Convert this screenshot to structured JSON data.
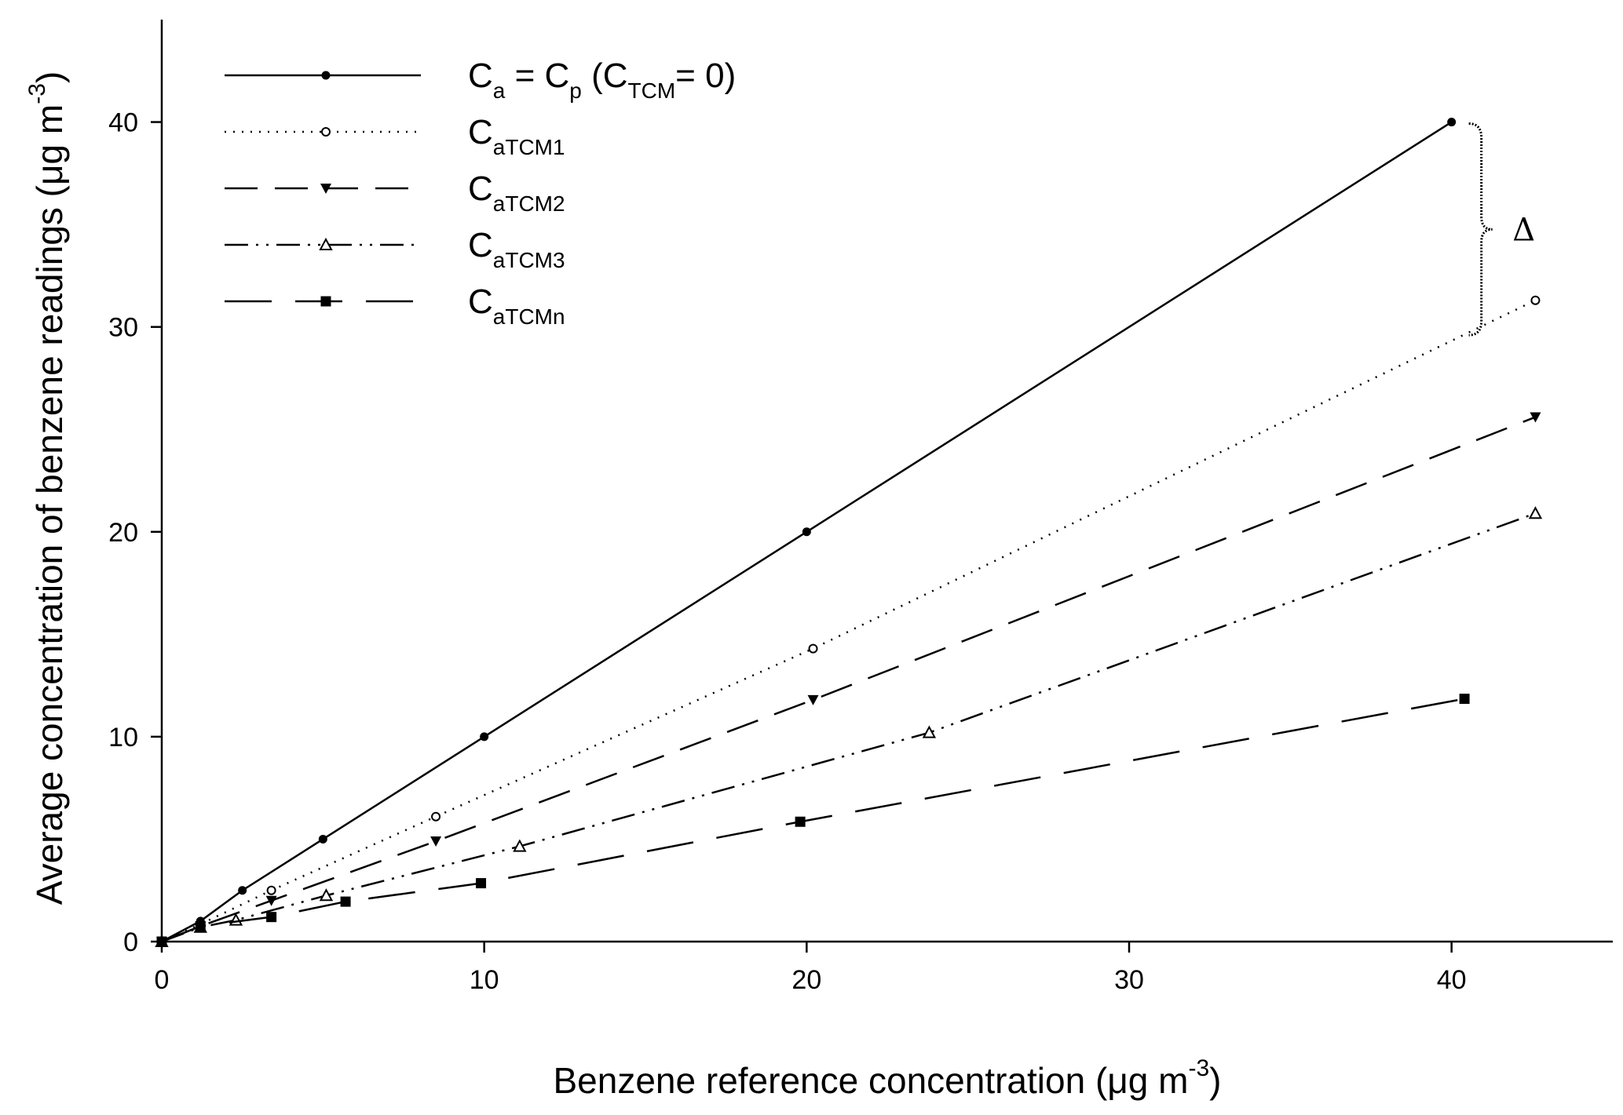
{
  "chart_data": {
    "type": "line",
    "xlabel": {
      "main": "Benzene reference concentration (",
      "mu": "μ",
      "g": "g m",
      "sup": "-3",
      "close": ")"
    },
    "ylabel": {
      "main": "Average concentration of benzene readings (",
      "mu": "μ",
      "g": "g m",
      "sup": "-3",
      "close": ")"
    },
    "xlim": [
      0,
      45
    ],
    "ylim": [
      0,
      45
    ],
    "x_ticks": [
      0,
      10,
      20,
      30,
      40
    ],
    "y_ticks": [
      0,
      10,
      20,
      30,
      40
    ],
    "grid": false,
    "legend_position": "top-left",
    "annotation": {
      "text": "Δ",
      "x": 40,
      "y_top": 40,
      "y_bottom": 29.6
    },
    "series": [
      {
        "name": "C_a = C_p (C_TCM= 0)",
        "legend": {
          "main": "C",
          "sub1": "a",
          "mid": " = C",
          "sub2": "p",
          "paren": " (C",
          "sub3": "TCM",
          "end": "= 0)"
        },
        "line_style": "solid",
        "marker": "filled-circle",
        "x": [
          0,
          1.2,
          2.5,
          5,
          10,
          20,
          40
        ],
        "y": [
          0,
          1.0,
          2.5,
          5.0,
          10.0,
          20.0,
          40.0
        ]
      },
      {
        "name": "C_aTCM1",
        "legend": {
          "main": "C",
          "sub1": "aTCM1"
        },
        "line_style": "dotted",
        "marker": "open-circle",
        "x": [
          0,
          1.2,
          3.4,
          8.5,
          20.2,
          42.6
        ],
        "y": [
          0,
          0.85,
          2.5,
          6.1,
          14.3,
          31.3
        ]
      },
      {
        "name": "C_aTCM2",
        "legend": {
          "main": "C",
          "sub1": "aTCM2"
        },
        "line_style": "dashed",
        "marker": "filled-triangle-down",
        "x": [
          0,
          1.2,
          3.4,
          8.5,
          20.2,
          42.6
        ],
        "y": [
          0,
          0.75,
          2.0,
          4.9,
          11.8,
          25.6
        ]
      },
      {
        "name": "C_aTCM3",
        "legend": {
          "main": "C",
          "sub1": "aTCM3"
        },
        "line_style": "dash-dot-dot",
        "marker": "open-triangle-up",
        "x": [
          0,
          1.2,
          2.3,
          5.1,
          11.1,
          23.8,
          42.6
        ],
        "y": [
          0,
          0.7,
          1.05,
          2.25,
          4.65,
          10.2,
          20.9
        ]
      },
      {
        "name": "C_aTCMn",
        "legend": {
          "main": "C",
          "sub1": "aTCMn"
        },
        "line_style": "long-dash",
        "marker": "filled-square",
        "x": [
          0,
          1.2,
          3.4,
          5.7,
          9.9,
          19.8,
          40.4
        ],
        "y": [
          0,
          0.75,
          1.2,
          1.95,
          2.85,
          5.85,
          11.85
        ]
      }
    ]
  }
}
